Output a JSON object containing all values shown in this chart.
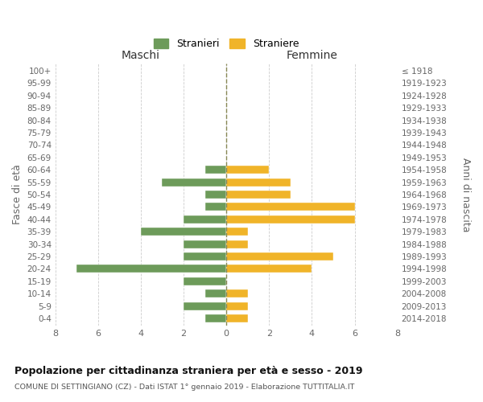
{
  "age_groups": [
    "0-4",
    "5-9",
    "10-14",
    "15-19",
    "20-24",
    "25-29",
    "30-34",
    "35-39",
    "40-44",
    "45-49",
    "50-54",
    "55-59",
    "60-64",
    "65-69",
    "70-74",
    "75-79",
    "80-84",
    "85-89",
    "90-94",
    "95-99",
    "100+"
  ],
  "birth_years": [
    "2014-2018",
    "2009-2013",
    "2004-2008",
    "1999-2003",
    "1994-1998",
    "1989-1993",
    "1984-1988",
    "1979-1983",
    "1974-1978",
    "1969-1973",
    "1964-1968",
    "1959-1963",
    "1954-1958",
    "1949-1953",
    "1944-1948",
    "1939-1943",
    "1934-1938",
    "1929-1933",
    "1924-1928",
    "1919-1923",
    "≤ 1918"
  ],
  "males": [
    1,
    2,
    1,
    2,
    7,
    2,
    2,
    4,
    2,
    1,
    1,
    3,
    1,
    0,
    0,
    0,
    0,
    0,
    0,
    0,
    0
  ],
  "females": [
    1,
    1,
    1,
    0,
    4,
    5,
    1,
    1,
    6,
    6,
    3,
    3,
    2,
    0,
    0,
    0,
    0,
    0,
    0,
    0,
    0
  ],
  "male_color": "#6d9b5a",
  "female_color": "#f0b429",
  "title": "Popolazione per cittadinanza straniera per età e sesso - 2019",
  "subtitle": "COMUNE DI SETTINGIANO (CZ) - Dati ISTAT 1° gennaio 2019 - Elaborazione TUTTITALIA.IT",
  "xlabel_left": "Maschi",
  "xlabel_right": "Femmine",
  "ylabel_left": "Fasce di età",
  "ylabel_right": "Anni di nascita",
  "legend_male": "Stranieri",
  "legend_female": "Straniere",
  "xlim": 8,
  "background_color": "#ffffff",
  "grid_color": "#cccccc"
}
